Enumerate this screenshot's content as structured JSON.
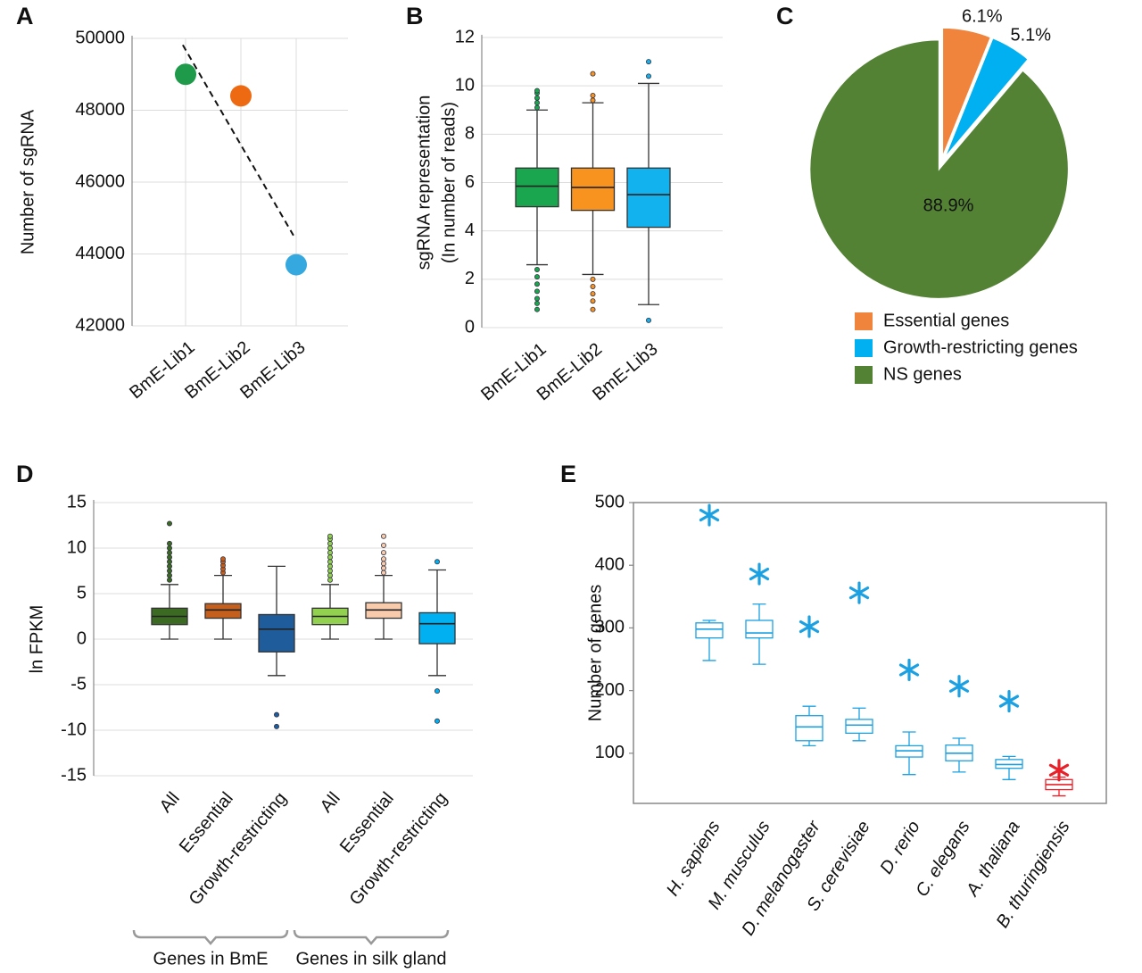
{
  "chart_data": [
    {
      "type": "scatter",
      "panel": "A",
      "y_label": "Number of sgRNA",
      "categories": [
        "BmE-Lib1",
        "BmE-Lib2",
        "BmE-Lib3"
      ],
      "values": [
        49000,
        48400,
        43700
      ],
      "colors": [
        "#1e9a4a",
        "#ee6a12",
        "#35a8e0"
      ],
      "ylim": [
        42000,
        50000
      ],
      "yticks": [
        42000,
        44000,
        46000,
        48000,
        50000
      ],
      "grid": true,
      "trendline": "dashed"
    },
    {
      "type": "box",
      "panel": "B",
      "y_label": [
        "sgRNA representation",
        "(In number of reads)"
      ],
      "categories": [
        "BmE-Lib1",
        "BmE-Lib2",
        "BmE-Lib3"
      ],
      "boxes": [
        {
          "whisker_low": 2.6,
          "q1": 5.0,
          "median": 5.85,
          "q3": 6.6,
          "whisker_high": 9.0,
          "outliers": [
            9.1,
            9.3,
            9.5,
            9.7,
            9.8,
            2.4,
            2.1,
            1.8,
            1.5,
            1.2,
            1.0,
            0.75
          ],
          "color": "#1aa64f"
        },
        {
          "whisker_low": 2.2,
          "q1": 4.85,
          "median": 5.8,
          "q3": 6.6,
          "whisker_high": 9.3,
          "outliers": [
            9.4,
            9.6,
            10.5,
            2.0,
            1.7,
            1.4,
            1.1,
            0.75
          ],
          "color": "#f7931e"
        },
        {
          "whisker_low": 0.95,
          "q1": 4.15,
          "median": 5.5,
          "q3": 6.6,
          "whisker_high": 10.1,
          "outliers": [
            10.4,
            11.0,
            0.3
          ],
          "color": "#12b2ee"
        }
      ],
      "box_style": "filled",
      "ylim": [
        0,
        12
      ],
      "yticks": [
        0,
        2,
        4,
        6,
        8,
        10,
        12
      ],
      "grid": true
    },
    {
      "type": "pie",
      "panel": "C",
      "categories": [
        "Essential genes",
        "Growth-restricting genes",
        "NS genes"
      ],
      "values": [
        6.1,
        5.1,
        88.9
      ],
      "value_labels": [
        "6.1%",
        "5.1%",
        "88.9%"
      ],
      "colors": [
        "#f0843c",
        "#00b0f0",
        "#548235"
      ],
      "legend": "bottom"
    },
    {
      "type": "box",
      "panel": "D",
      "y_label": "ln FPKM",
      "groups": [
        {
          "name": "Genes in BmE",
          "categories": [
            "All",
            "Essential",
            "Growth-restricting"
          ],
          "boxes": [
            {
              "whisker_low": 0,
              "q1": 1.6,
              "median": 2.5,
              "q3": 3.4,
              "whisker_high": 6.0,
              "outliers": [
                6.5,
                7,
                7.5,
                8,
                8.5,
                9,
                9.5,
                10,
                10.5,
                12.7
              ],
              "color": "#3b6b22"
            },
            {
              "whisker_low": 0,
              "q1": 2.3,
              "median": 3.2,
              "q3": 3.9,
              "whisker_high": 7.0,
              "outliers": [
                7.3,
                7.7,
                8.1,
                8.5,
                8.8
              ],
              "color": "#c55f1d"
            },
            {
              "whisker_low": -4,
              "q1": -1.4,
              "median": 1.1,
              "q3": 2.7,
              "whisker_high": 8.0,
              "outliers": [
                -8.3,
                -9.6
              ],
              "color": "#1f5c9c"
            }
          ]
        },
        {
          "name": "Genes in silk gland",
          "categories": [
            "All",
            "Essential",
            "Growth-restricting"
          ],
          "boxes": [
            {
              "whisker_low": 0,
              "q1": 1.6,
              "median": 2.5,
              "q3": 3.4,
              "whisker_high": 6.0,
              "outliers": [
                6.5,
                7,
                7.5,
                8,
                8.5,
                9,
                9.5,
                10,
                10.5,
                11,
                11.3
              ],
              "color": "#92d050"
            },
            {
              "whisker_low": 0,
              "q1": 2.3,
              "median": 3.2,
              "q3": 4.0,
              "whisker_high": 7.0,
              "outliers": [
                7.3,
                7.8,
                8.3,
                8.8,
                9.5,
                10.3,
                11.3
              ],
              "color": "#f8cbad"
            },
            {
              "whisker_low": -4,
              "q1": -0.5,
              "median": 1.7,
              "q3": 2.9,
              "whisker_high": 7.6,
              "outliers": [
                8.5,
                -5.7,
                -9.0
              ],
              "color": "#00b0f0"
            }
          ]
        }
      ],
      "box_style": "filled",
      "ylim": [
        -15,
        15
      ],
      "yticks": [
        -15,
        -10,
        -5,
        0,
        5,
        10,
        15
      ],
      "grid": true
    },
    {
      "type": "box",
      "panel": "E",
      "y_label": "Number of genes",
      "categories": [
        "H. sapiens",
        "M. musculus",
        "D. melanogaster",
        "S. cerevisiae",
        "D. rerio",
        "C. elegans",
        "A. thaliana",
        "B. thuringiensis"
      ],
      "category_font_style": "italic",
      "boxes": [
        {
          "whisker_low": 248,
          "q1": 284,
          "median": 298,
          "q3": 308,
          "whisker_high": 312,
          "color": "#1ba1e2"
        },
        {
          "whisker_low": 242,
          "q1": 284,
          "median": 292,
          "q3": 312,
          "whisker_high": 338,
          "color": "#1ba1e2"
        },
        {
          "whisker_low": 112,
          "q1": 120,
          "median": 142,
          "q3": 160,
          "whisker_high": 175,
          "color": "#1ba1e2"
        },
        {
          "whisker_low": 120,
          "q1": 132,
          "median": 145,
          "q3": 154,
          "whisker_high": 172,
          "color": "#1ba1e2"
        },
        {
          "whisker_low": 66,
          "q1": 94,
          "median": 104,
          "q3": 112,
          "whisker_high": 134,
          "color": "#1ba1e2"
        },
        {
          "whisker_low": 70,
          "q1": 88,
          "median": 100,
          "q3": 113,
          "whisker_high": 124,
          "color": "#1ba1e2"
        },
        {
          "whisker_low": 58,
          "q1": 76,
          "median": 82,
          "q3": 90,
          "whisker_high": 95,
          "color": "#1ba1e2"
        },
        {
          "whisker_low": 32,
          "q1": 42,
          "median": 50,
          "q3": 58,
          "whisker_high": 62,
          "color": "#e8202a"
        }
      ],
      "markers": [
        480,
        386,
        302,
        356,
        233,
        207,
        183,
        73
      ],
      "marker_colors": [
        "#1ba1e2",
        "#1ba1e2",
        "#1ba1e2",
        "#1ba1e2",
        "#1ba1e2",
        "#1ba1e2",
        "#1ba1e2",
        "#e8202a"
      ],
      "box_style": "outline",
      "frame": true,
      "ylim": [
        20,
        500
      ],
      "yticks": [
        100,
        200,
        300,
        400,
        500
      ]
    }
  ]
}
